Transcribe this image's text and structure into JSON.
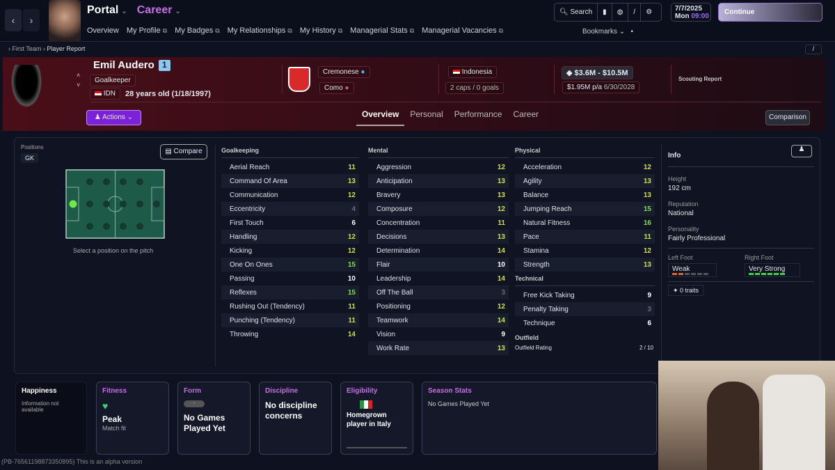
{
  "nav": {
    "portal": "Portal",
    "career": "Career",
    "menu": [
      "Overview",
      "My Profile",
      "My Badges",
      "My Relationships",
      "My History",
      "Managerial Stats",
      "Managerial Vacancies"
    ],
    "search": "Search",
    "date": "7/7/2025",
    "day": "Mon",
    "time": "09:00",
    "continue": "Continue",
    "bookmarks": "Bookmarks"
  },
  "breadcrumb": [
    "First Team",
    "Player Report"
  ],
  "player": {
    "name": "Emil Audero",
    "number": "1",
    "position": "Goalkeeper",
    "nation_code": "IDN",
    "age": "28 years old (1/18/1997)",
    "club": "Cremonese",
    "loan_club": "Como",
    "nation": "Indonesia",
    "caps": "2 caps / 0 goals",
    "value": "$3.6M - $10.5M",
    "wage": "$1.95M p/a",
    "contract": "6/30/2028",
    "scouting": "Scouting Report",
    "actions": "Actions"
  },
  "tabs": [
    "Overview",
    "Personal",
    "Performance",
    "Career"
  ],
  "comparison": "Comparison",
  "positions": {
    "label": "Positions",
    "value": "GK",
    "compare": "Compare",
    "hint": "Select a position on the pitch"
  },
  "attributes": {
    "goalkeeping": {
      "title": "Goalkeeping",
      "items": [
        [
          "Aerial Reach",
          11
        ],
        [
          "Command Of Area",
          13
        ],
        [
          "Communication",
          12
        ],
        [
          "Eccentricity",
          4
        ],
        [
          "First Touch",
          6
        ],
        [
          "Handling",
          12
        ],
        [
          "Kicking",
          12
        ],
        [
          "One On Ones",
          15
        ],
        [
          "Passing",
          10
        ],
        [
          "Reflexes",
          15
        ],
        [
          "Rushing Out (Tendency)",
          11
        ],
        [
          "Punching (Tendency)",
          11
        ],
        [
          "Throwing",
          14
        ]
      ]
    },
    "mental": {
      "title": "Mental",
      "items": [
        [
          "Aggression",
          12
        ],
        [
          "Anticipation",
          13
        ],
        [
          "Bravery",
          13
        ],
        [
          "Composure",
          12
        ],
        [
          "Concentration",
          11
        ],
        [
          "Decisions",
          13
        ],
        [
          "Determination",
          14
        ],
        [
          "Flair",
          10
        ],
        [
          "Leadership",
          14
        ],
        [
          "Off The Ball",
          3
        ],
        [
          "Positioning",
          12
        ],
        [
          "Teamwork",
          14
        ],
        [
          "Vision",
          9
        ],
        [
          "Work Rate",
          13
        ]
      ]
    },
    "physical": {
      "title": "Physical",
      "items": [
        [
          "Acceleration",
          12
        ],
        [
          "Agility",
          13
        ],
        [
          "Balance",
          13
        ],
        [
          "Jumping Reach",
          15
        ],
        [
          "Natural Fitness",
          16
        ],
        [
          "Pace",
          11
        ],
        [
          "Stamina",
          12
        ],
        [
          "Strength",
          13
        ]
      ]
    },
    "technical": {
      "title": "Technical",
      "items": [
        [
          "Free Kick Taking",
          9
        ],
        [
          "Penalty Taking",
          3
        ],
        [
          "Technique",
          6
        ]
      ]
    },
    "outfield": {
      "title": "Outfield",
      "label": "Outfield Rating",
      "value": "2 / 10"
    }
  },
  "info": {
    "title": "Info",
    "height_label": "Height",
    "height": "192 cm",
    "reputation_label": "Reputation",
    "reputation": "National",
    "personality_label": "Personality",
    "personality": "Fairly Professional",
    "left_foot_label": "Left Foot",
    "left_foot": "Weak",
    "left_foot_level": 2,
    "right_foot_label": "Right Foot",
    "right_foot": "Very Strong",
    "right_foot_level": 6,
    "traits": "0 traits"
  },
  "cards": {
    "happiness": {
      "title": "Happiness",
      "text": "Information not available"
    },
    "fitness": {
      "title": "Fitness",
      "value": "Peak",
      "sub": "Match fit"
    },
    "form": {
      "title": "Form",
      "badge": "-",
      "value": "No Games Played Yet"
    },
    "discipline": {
      "title": "Discipline",
      "value": "No discipline concerns"
    },
    "eligibility": {
      "title": "Eligibility",
      "value": "Homegrown player in Italy"
    },
    "season": {
      "title": "Season Stats",
      "value": "No Games Played Yet"
    }
  },
  "footer": "(PB-76561198873350895) This is an alpha version",
  "colors": {
    "accent": "#c86ee8",
    "good": "#cde04a",
    "great": "#7ee04a",
    "low": "#666b78",
    "actions": "#7b22d8"
  }
}
